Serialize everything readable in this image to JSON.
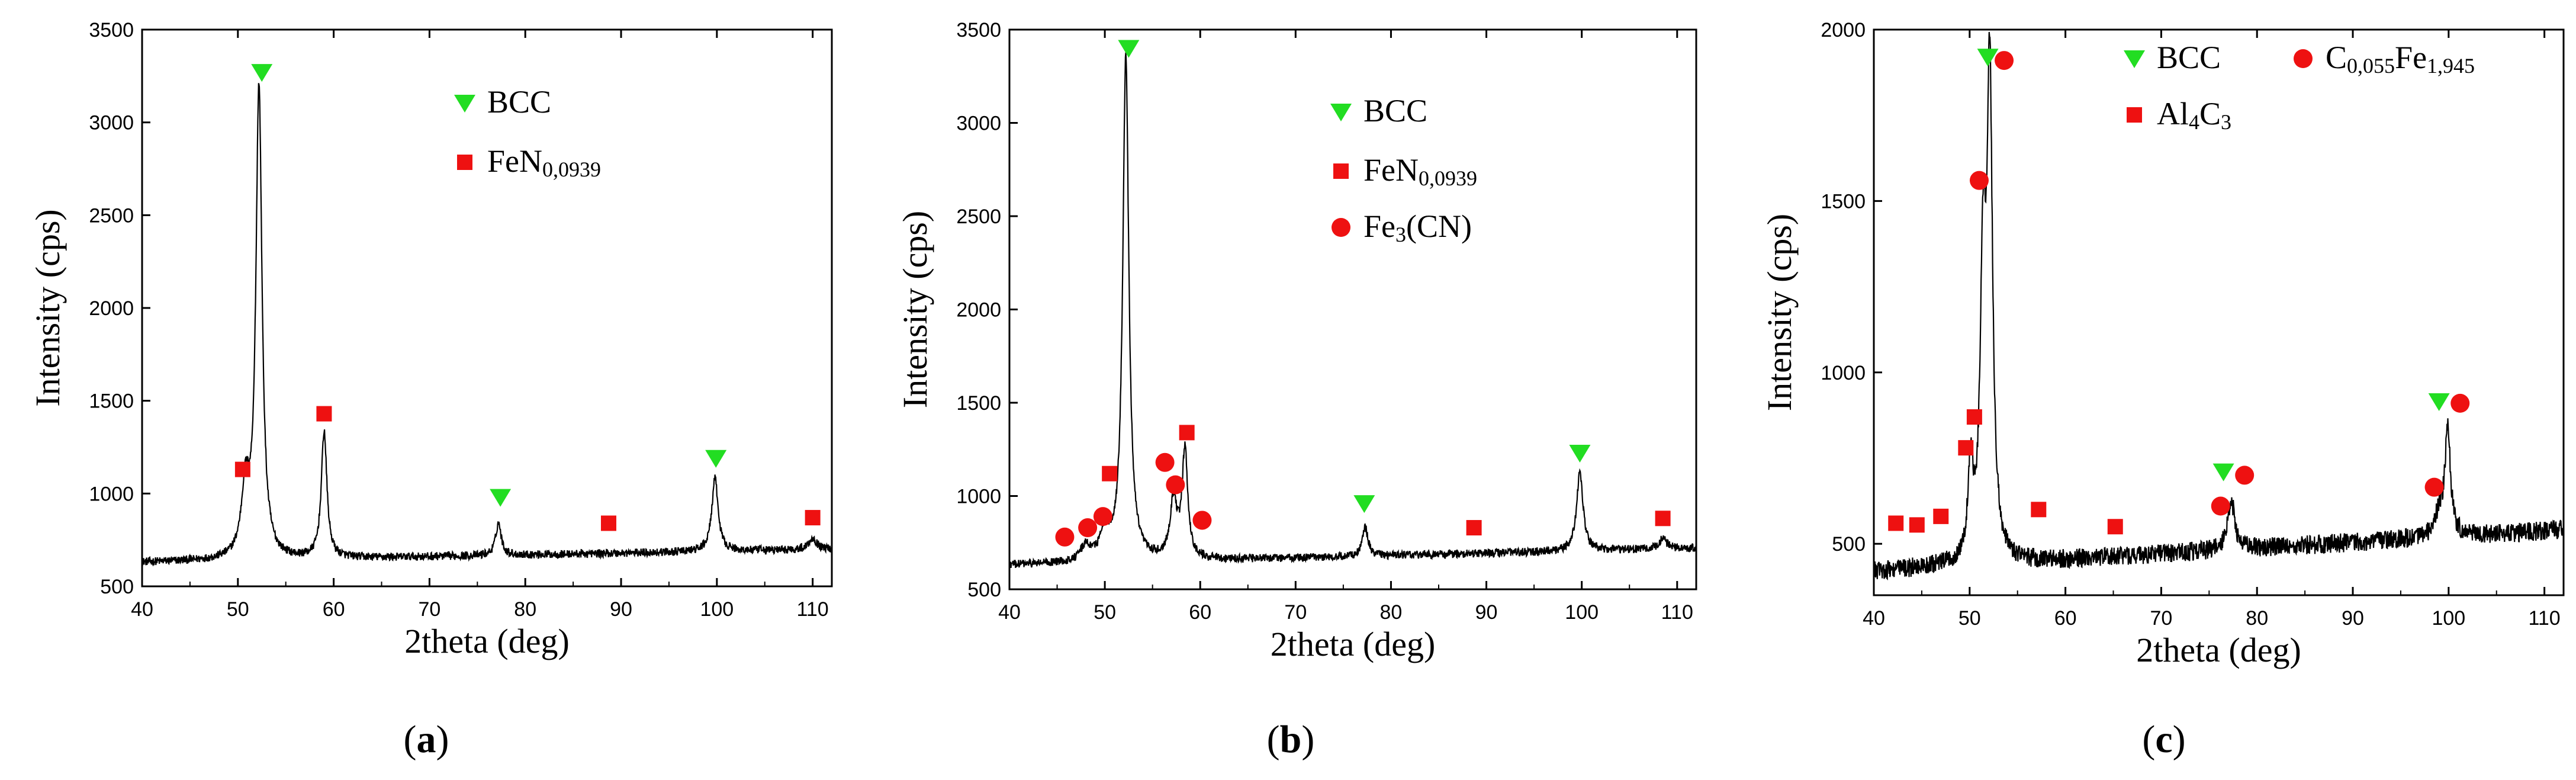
{
  "chart_data": [
    {
      "type": "line",
      "panel_label": {
        "open": "(",
        "letter": "a",
        "close": ")"
      },
      "xlabel": "2theta (deg)",
      "ylabel": "Intensity (cps)",
      "xlim": [
        40,
        112
      ],
      "ylim": [
        500,
        3500
      ],
      "xticks": [
        40,
        50,
        60,
        70,
        80,
        90,
        100,
        110
      ],
      "yticks": [
        500,
        1000,
        1500,
        2000,
        2500,
        3000,
        3500
      ],
      "baseline": {
        "start": 630,
        "end": 700,
        "noise": 22
      },
      "peaks": [
        {
          "x": 50.8,
          "y": 1000,
          "w": 0.5
        },
        {
          "x": 52.2,
          "y": 3180,
          "w": 0.38
        },
        {
          "x": 59.0,
          "y": 1330,
          "w": 0.35
        },
        {
          "x": 77.2,
          "y": 840,
          "w": 0.35
        },
        {
          "x": 99.8,
          "y": 1080,
          "w": 0.4
        },
        {
          "x": 110.0,
          "y": 760,
          "w": 0.5
        }
      ],
      "markers": [
        {
          "phase": "BCC",
          "x": 52.5,
          "y": 3270
        },
        {
          "phase": "BCC",
          "x": 77.4,
          "y": 980
        },
        {
          "phase": "BCC",
          "x": 99.9,
          "y": 1190
        },
        {
          "phase": "FeN0,0939",
          "x": 50.5,
          "y": 1130
        },
        {
          "phase": "FeN0,0939",
          "x": 59.0,
          "y": 1430
        },
        {
          "phase": "FeN0,0939",
          "x": 88.7,
          "y": 840
        },
        {
          "phase": "FeN0,0939",
          "x": 110.0,
          "y": 870
        }
      ],
      "legend": [
        {
          "key": "BCC",
          "marker": "triangle-down",
          "color": "#22dd22",
          "parts": [
            {
              "t": "BCC"
            }
          ]
        },
        {
          "key": "FeN0,0939",
          "marker": "square",
          "color": "#ee1111",
          "parts": [
            {
              "t": "FeN"
            },
            {
              "t": "0,0939",
              "sub": true
            }
          ]
        }
      ]
    },
    {
      "type": "line",
      "panel_label": {
        "open": "(",
        "letter": "b",
        "close": ")"
      },
      "xlabel": "2theta (deg)",
      "ylabel": "Intensity (cps)",
      "xlim": [
        40,
        112
      ],
      "ylim": [
        500,
        3500
      ],
      "xticks": [
        40,
        50,
        60,
        70,
        80,
        90,
        100,
        110
      ],
      "yticks": [
        500,
        1000,
        1500,
        2000,
        2500,
        3000,
        3500
      ],
      "baseline": {
        "start": 630,
        "end": 720,
        "noise": 22
      },
      "peaks": [
        {
          "x": 48.0,
          "y": 720,
          "w": 0.6
        },
        {
          "x": 50.0,
          "y": 790,
          "w": 0.6
        },
        {
          "x": 52.2,
          "y": 3350,
          "w": 0.38
        },
        {
          "x": 57.2,
          "y": 960,
          "w": 0.45
        },
        {
          "x": 58.4,
          "y": 1230,
          "w": 0.35
        },
        {
          "x": 77.3,
          "y": 830,
          "w": 0.35
        },
        {
          "x": 99.8,
          "y": 1130,
          "w": 0.4
        },
        {
          "x": 108.5,
          "y": 770,
          "w": 0.5
        }
      ],
      "markers": [
        {
          "phase": "BCC",
          "x": 52.5,
          "y": 3400
        },
        {
          "phase": "BCC",
          "x": 77.2,
          "y": 960
        },
        {
          "phase": "BCC",
          "x": 99.8,
          "y": 1230
        },
        {
          "phase": "FeN0,0939",
          "x": 50.5,
          "y": 1120
        },
        {
          "phase": "FeN0,0939",
          "x": 58.6,
          "y": 1340
        },
        {
          "phase": "FeN0,0939",
          "x": 88.7,
          "y": 830
        },
        {
          "phase": "FeN0,0939",
          "x": 108.5,
          "y": 880
        },
        {
          "phase": "Fe3(CN)",
          "x": 45.8,
          "y": 780
        },
        {
          "phase": "Fe3(CN)",
          "x": 48.2,
          "y": 830
        },
        {
          "phase": "Fe3(CN)",
          "x": 49.8,
          "y": 890
        },
        {
          "phase": "Fe3(CN)",
          "x": 56.3,
          "y": 1180
        },
        {
          "phase": "Fe3(CN)",
          "x": 57.4,
          "y": 1060
        },
        {
          "phase": "Fe3(CN)",
          "x": 60.2,
          "y": 870
        }
      ],
      "legend": [
        {
          "key": "BCC",
          "marker": "triangle-down",
          "color": "#22dd22",
          "parts": [
            {
              "t": "BCC"
            }
          ]
        },
        {
          "key": "FeN0,0939",
          "marker": "square",
          "color": "#ee1111",
          "parts": [
            {
              "t": "FeN"
            },
            {
              "t": "0,0939",
              "sub": true
            }
          ]
        },
        {
          "key": "Fe3(CN)",
          "marker": "circle",
          "color": "#ee1111",
          "parts": [
            {
              "t": "Fe"
            },
            {
              "t": "3",
              "sub": true
            },
            {
              "t": "(CN)"
            }
          ]
        }
      ]
    },
    {
      "type": "line",
      "panel_label": {
        "open": "(",
        "letter": "c",
        "close": ")"
      },
      "xlabel": "2theta (deg)",
      "ylabel": "Intensity (cps)",
      "xlim": [
        40,
        112
      ],
      "ylim": [
        350,
        2000
      ],
      "xticks": [
        40,
        50,
        60,
        70,
        80,
        90,
        100,
        110
      ],
      "yticks": [
        500,
        1000,
        1500,
        2000
      ],
      "baseline": {
        "start": 420,
        "end": 540,
        "noise": 28
      },
      "peaks": [
        {
          "x": 50.1,
          "y": 720,
          "w": 0.3
        },
        {
          "x": 51.4,
          "y": 1250,
          "w": 0.35
        },
        {
          "x": 52.1,
          "y": 1820,
          "w": 0.35
        },
        {
          "x": 77.3,
          "y": 630,
          "w": 0.45
        },
        {
          "x": 99.0,
          "y": 580,
          "w": 0.5
        },
        {
          "x": 99.9,
          "y": 840,
          "w": 0.35
        }
      ],
      "markers": [
        {
          "phase": "BCC",
          "x": 51.9,
          "y": 1920
        },
        {
          "phase": "BCC",
          "x": 76.5,
          "y": 710
        },
        {
          "phase": "BCC",
          "x": 99.0,
          "y": 915
        },
        {
          "phase": "C0,055Fe1,945",
          "x": 53.6,
          "y": 1910
        },
        {
          "phase": "C0,055Fe1,945",
          "x": 51.0,
          "y": 1560
        },
        {
          "phase": "C0,055Fe1,945",
          "x": 76.2,
          "y": 610
        },
        {
          "phase": "C0,055Fe1,945",
          "x": 78.7,
          "y": 700
        },
        {
          "phase": "C0,055Fe1,945",
          "x": 98.5,
          "y": 665
        },
        {
          "phase": "C0,055Fe1,945",
          "x": 101.2,
          "y": 910
        },
        {
          "phase": "Al4C3",
          "x": 42.3,
          "y": 560
        },
        {
          "phase": "Al4C3",
          "x": 44.5,
          "y": 555
        },
        {
          "phase": "Al4C3",
          "x": 47.0,
          "y": 580
        },
        {
          "phase": "Al4C3",
          "x": 49.6,
          "y": 780
        },
        {
          "phase": "Al4C3",
          "x": 50.5,
          "y": 870
        },
        {
          "phase": "Al4C3",
          "x": 57.2,
          "y": 600
        },
        {
          "phase": "Al4C3",
          "x": 65.2,
          "y": 550
        }
      ],
      "legend": [
        {
          "key": "BCC",
          "marker": "triangle-down",
          "color": "#22dd22",
          "parts": [
            {
              "t": "BCC"
            }
          ]
        },
        {
          "key": "C0,055Fe1,945",
          "marker": "circle",
          "color": "#ee1111",
          "parts": [
            {
              "t": "C"
            },
            {
              "t": "0,055",
              "sub": true
            },
            {
              "t": "Fe"
            },
            {
              "t": "1,945",
              "sub": true
            }
          ]
        },
        {
          "key": "Al4C3",
          "marker": "square",
          "color": "#ee1111",
          "parts": [
            {
              "t": "Al"
            },
            {
              "t": "4",
              "sub": true
            },
            {
              "t": "C"
            },
            {
              "t": "3",
              "sub": true
            }
          ]
        }
      ]
    }
  ]
}
